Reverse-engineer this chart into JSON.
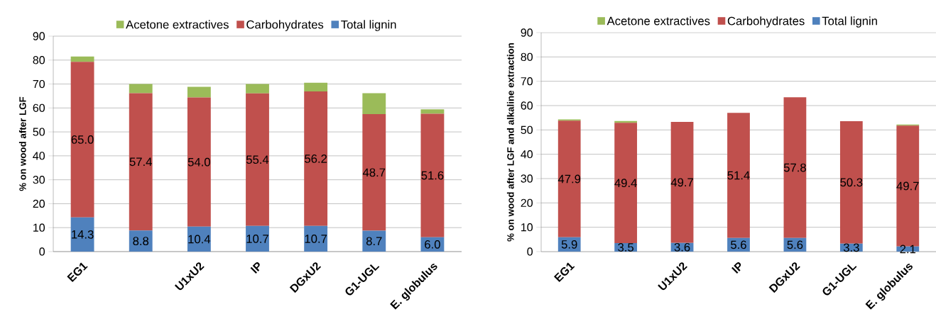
{
  "chart_data": [
    {
      "type": "bar",
      "stacked": true,
      "ylabel": "% on wood after LGF",
      "categories": [
        "EG1",
        null,
        "U1xU2",
        "IP",
        "DGxU2",
        "G1-UGL",
        "E. globulus"
      ],
      "ylim": [
        0,
        90
      ],
      "yticks": [
        0,
        10,
        20,
        30,
        40,
        50,
        60,
        70,
        80,
        90
      ],
      "grid": "y",
      "legend": "top",
      "series": [
        {
          "name": "Total lignin",
          "color": "#4f81bd",
          "values": [
            14.3,
            8.8,
            10.4,
            10.7,
            10.7,
            8.7,
            6.0
          ],
          "value_labels": [
            "14.3",
            "8.8",
            "10.4",
            "10.7",
            "10.7",
            "8.7",
            "6.0"
          ]
        },
        {
          "name": "Carbohydrates",
          "color": "#c0504d",
          "values": [
            65.0,
            57.4,
            54.0,
            55.4,
            56.2,
            48.7,
            51.6
          ],
          "value_labels": [
            "65.0",
            "57.4",
            "54.0",
            "55.4",
            "56.2",
            "48.7",
            "51.6"
          ]
        },
        {
          "name": "Acetone extractives",
          "color": "#9bbb59",
          "values": [
            2.2,
            3.8,
            4.4,
            3.9,
            3.6,
            8.8,
            1.8
          ]
        }
      ]
    },
    {
      "type": "bar",
      "stacked": true,
      "ylabel": "% on wood after LGF and alkaline  extraction",
      "categories": [
        "EG1",
        null,
        "U1xU2",
        "IP",
        "DGxU2",
        "G1-UGL",
        "E. globulus"
      ],
      "ylim": [
        0,
        90
      ],
      "yticks": [
        0,
        10,
        20,
        30,
        40,
        50,
        60,
        70,
        80,
        90
      ],
      "grid": "y",
      "legend": "top",
      "series": [
        {
          "name": "Total lignin",
          "color": "#4f81bd",
          "values": [
            5.9,
            3.5,
            3.6,
            5.6,
            5.6,
            3.3,
            2.1
          ],
          "value_labels": [
            "5.9",
            "3.5",
            "3.6",
            "5.6",
            "5.6",
            "3.3",
            "2.1"
          ]
        },
        {
          "name": "Carbohydrates",
          "color": "#c0504d",
          "values": [
            47.9,
            49.4,
            49.7,
            51.4,
            57.8,
            50.3,
            49.7
          ],
          "value_labels": [
            "47.9",
            "49.4",
            "49.7",
            "51.4",
            "57.8",
            "50.3",
            "49.7"
          ]
        },
        {
          "name": "Acetone extractives",
          "color": "#9bbb59",
          "values": [
            0.5,
            0.8,
            0.0,
            0.0,
            0.0,
            0.0,
            0.4
          ]
        }
      ]
    }
  ]
}
